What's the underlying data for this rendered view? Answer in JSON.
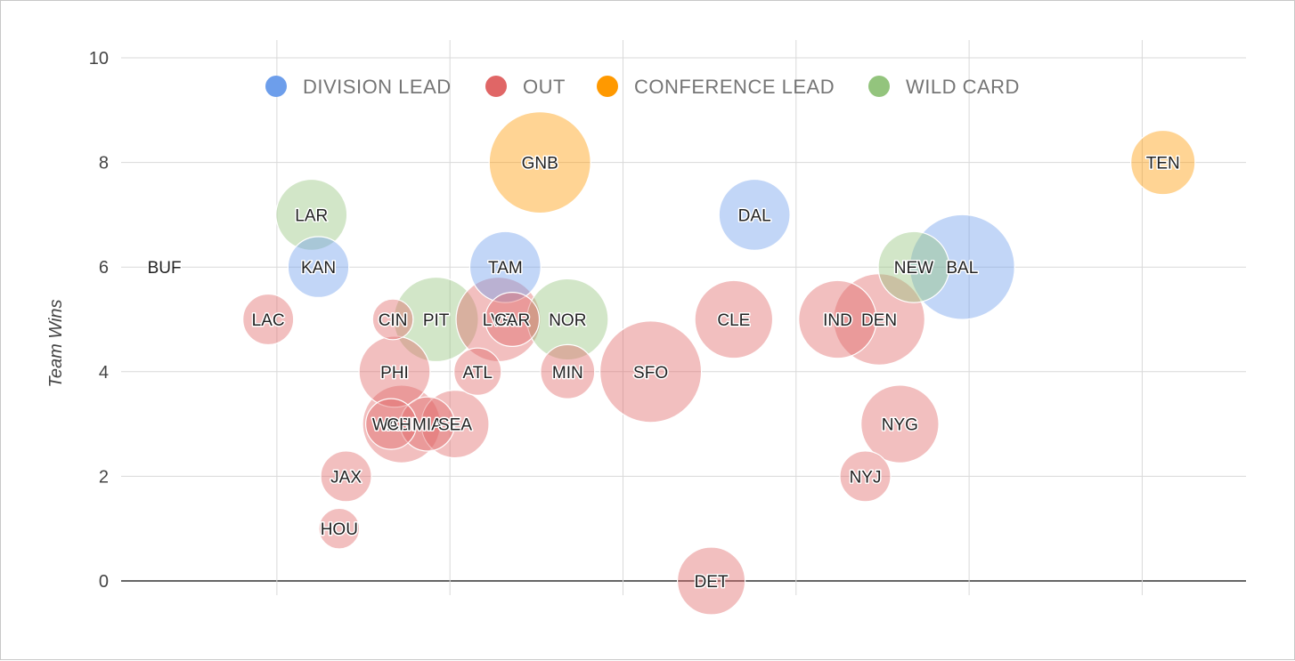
{
  "chart_data": {
    "type": "scatter",
    "subtype": "bubble",
    "title": "",
    "xlabel": "",
    "ylabel": "Team Wins",
    "ylim": [
      0,
      10
    ],
    "y_ticks": [
      "0",
      "2",
      "4",
      "6",
      "8",
      "10"
    ],
    "x_tick_labels_shown": false,
    "grid": true,
    "legend_position": "top",
    "legend": [
      {
        "name": "DIVISION LEAD",
        "color": "#6d9eeb"
      },
      {
        "name": "OUT",
        "color": "#e06666"
      },
      {
        "name": "CONFERENCE LEAD",
        "color": "#ff9900"
      },
      {
        "name": "WILD CARD",
        "color": "#93c47d"
      }
    ],
    "points": [
      {
        "label": "BUF",
        "group": "DIVISION LEAD",
        "x": -0.65,
        "y": 6,
        "size": 0
      },
      {
        "label": "LAR",
        "group": "WILD CARD",
        "x": 0.2,
        "y": 7,
        "size": 2.1
      },
      {
        "label": "KAN",
        "group": "DIVISION LEAD",
        "x": 0.24,
        "y": 6,
        "size": 1.8
      },
      {
        "label": "LAC",
        "group": "OUT",
        "x": -0.05,
        "y": 5,
        "size": 1.5
      },
      {
        "label": "CIN",
        "group": "OUT",
        "x": 0.67,
        "y": 5,
        "size": 1.2
      },
      {
        "label": "PIT",
        "group": "WILD CARD",
        "x": 0.92,
        "y": 5,
        "size": 2.5
      },
      {
        "label": "PHI",
        "group": "OUT",
        "x": 0.68,
        "y": 4,
        "size": 2.1
      },
      {
        "label": "WAS",
        "group": "OUT",
        "x": 0.66,
        "y": 3,
        "size": 1.5
      },
      {
        "label": "CHI",
        "group": "OUT",
        "x": 0.72,
        "y": 3,
        "size": 2.3
      },
      {
        "label": "MIA",
        "group": "OUT",
        "x": 0.87,
        "y": 3,
        "size": 1.6
      },
      {
        "label": "SEA",
        "group": "OUT",
        "x": 1.03,
        "y": 3,
        "size": 2.0
      },
      {
        "label": "JAX",
        "group": "OUT",
        "x": 0.4,
        "y": 2,
        "size": 1.5
      },
      {
        "label": "HOU",
        "group": "OUT",
        "x": 0.36,
        "y": 1,
        "size": 1.2
      },
      {
        "label": "TAM",
        "group": "DIVISION LEAD",
        "x": 1.32,
        "y": 6,
        "size": 2.1
      },
      {
        "label": "LVR",
        "group": "OUT",
        "x": 1.28,
        "y": 5,
        "size": 2.5
      },
      {
        "label": "CAR",
        "group": "OUT",
        "x": 1.36,
        "y": 5,
        "size": 1.6
      },
      {
        "label": "ATL",
        "group": "OUT",
        "x": 1.16,
        "y": 4,
        "size": 1.4
      },
      {
        "label": "GNB",
        "group": "CONFERENCE LEAD",
        "x": 1.52,
        "y": 8,
        "size": 3.0
      },
      {
        "label": "NOR",
        "group": "WILD CARD",
        "x": 1.68,
        "y": 5,
        "size": 2.4
      },
      {
        "label": "MIN",
        "group": "OUT",
        "x": 1.68,
        "y": 4,
        "size": 1.6
      },
      {
        "label": "SFO",
        "group": "OUT",
        "x": 2.16,
        "y": 4,
        "size": 3.0
      },
      {
        "label": "DAL",
        "group": "DIVISION LEAD",
        "x": 2.76,
        "y": 7,
        "size": 2.1
      },
      {
        "label": "CLE",
        "group": "OUT",
        "x": 2.64,
        "y": 5,
        "size": 2.3
      },
      {
        "label": "DET",
        "group": "OUT",
        "x": 2.51,
        "y": 0,
        "size": 2.0
      },
      {
        "label": "IND",
        "group": "OUT",
        "x": 3.24,
        "y": 5,
        "size": 2.3
      },
      {
        "label": "DEN",
        "group": "OUT",
        "x": 3.48,
        "y": 5,
        "size": 2.7
      },
      {
        "label": "NEW",
        "group": "WILD CARD",
        "x": 3.68,
        "y": 6,
        "size": 2.1
      },
      {
        "label": "BAL",
        "group": "DIVISION LEAD",
        "x": 3.96,
        "y": 6,
        "size": 3.1
      },
      {
        "label": "NYG",
        "group": "OUT",
        "x": 3.6,
        "y": 3,
        "size": 2.3
      },
      {
        "label": "NYJ",
        "group": "OUT",
        "x": 3.4,
        "y": 2,
        "size": 1.5
      },
      {
        "label": "TEN",
        "group": "CONFERENCE LEAD",
        "x": 5.12,
        "y": 8,
        "size": 1.9
      }
    ]
  }
}
